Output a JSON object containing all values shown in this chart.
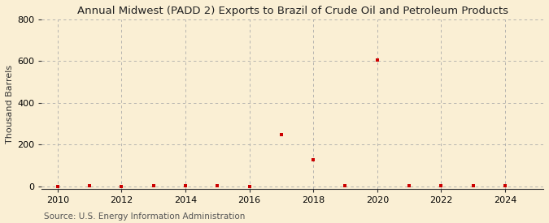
{
  "title": "Annual Midwest (PADD 2) Exports to Brazil of Crude Oil and Petroleum Products",
  "ylabel": "Thousand Barrels",
  "source": "Source: U.S. Energy Information Administration",
  "background_color": "#faefd4",
  "plot_bg_color": "#faefd4",
  "marker_color": "#cc0000",
  "xlim": [
    2009.5,
    2025.2
  ],
  "ylim": [
    -10,
    800
  ],
  "yticks": [
    0,
    200,
    400,
    600,
    800
  ],
  "xticks": [
    2010,
    2012,
    2014,
    2016,
    2018,
    2020,
    2022,
    2024
  ],
  "data_x": [
    2010,
    2011,
    2012,
    2013,
    2014,
    2015,
    2016,
    2017,
    2018,
    2019,
    2020,
    2021,
    2022,
    2023,
    2024
  ],
  "data_y": [
    0,
    2,
    0,
    2,
    2,
    2,
    0,
    248,
    127,
    2,
    607,
    2,
    2,
    5,
    2
  ],
  "title_fontsize": 9.5,
  "ylabel_fontsize": 8,
  "tick_fontsize": 8,
  "source_fontsize": 7.5
}
